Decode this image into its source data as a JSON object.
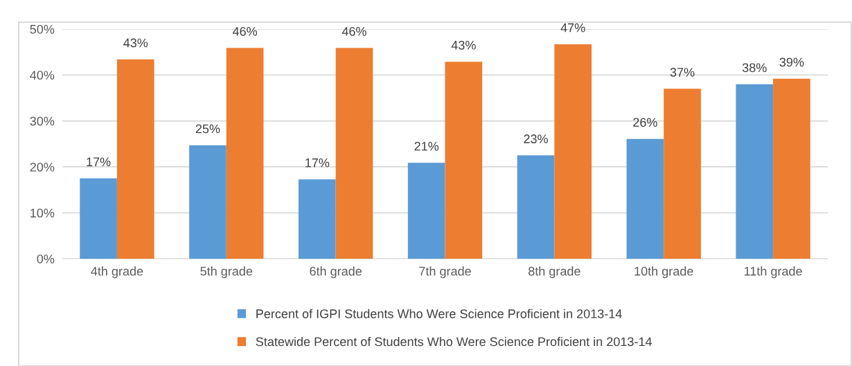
{
  "chart_data": {
    "type": "bar",
    "categories": [
      "4th grade",
      "5th grade",
      "6th grade",
      "7th grade",
      "8th grade",
      "10th grade",
      "11th grade"
    ],
    "series": [
      {
        "name": "Percent of IGPI Students Who Were Science Proficient in 2013-14",
        "color": "#5b9bd5",
        "values": [
          17.5,
          24.7,
          17.3,
          20.9,
          22.5,
          26.1,
          38.0
        ],
        "value_labels": [
          "17%",
          "25%",
          "17%",
          "21%",
          "23%",
          "26%",
          "38%"
        ]
      },
      {
        "name": "Statewide Percent of Students Who Were Science Proficient in 2013-14",
        "color": "#ed7d31",
        "values": [
          43.4,
          45.9,
          45.9,
          42.9,
          46.7,
          37.0,
          39.2
        ],
        "value_labels": [
          "43%",
          "46%",
          "46%",
          "43%",
          "47%",
          "37%",
          "39%"
        ]
      }
    ],
    "ylim": [
      0,
      50
    ],
    "yticks": [
      {
        "value": 0,
        "label": "0%"
      },
      {
        "value": 10,
        "label": "10%"
      },
      {
        "value": 20,
        "label": "20%"
      },
      {
        "value": 30,
        "label": "30%"
      },
      {
        "value": 40,
        "label": "40%"
      },
      {
        "value": 50,
        "label": "50%"
      }
    ],
    "grid": "y",
    "legend": "bottom"
  }
}
